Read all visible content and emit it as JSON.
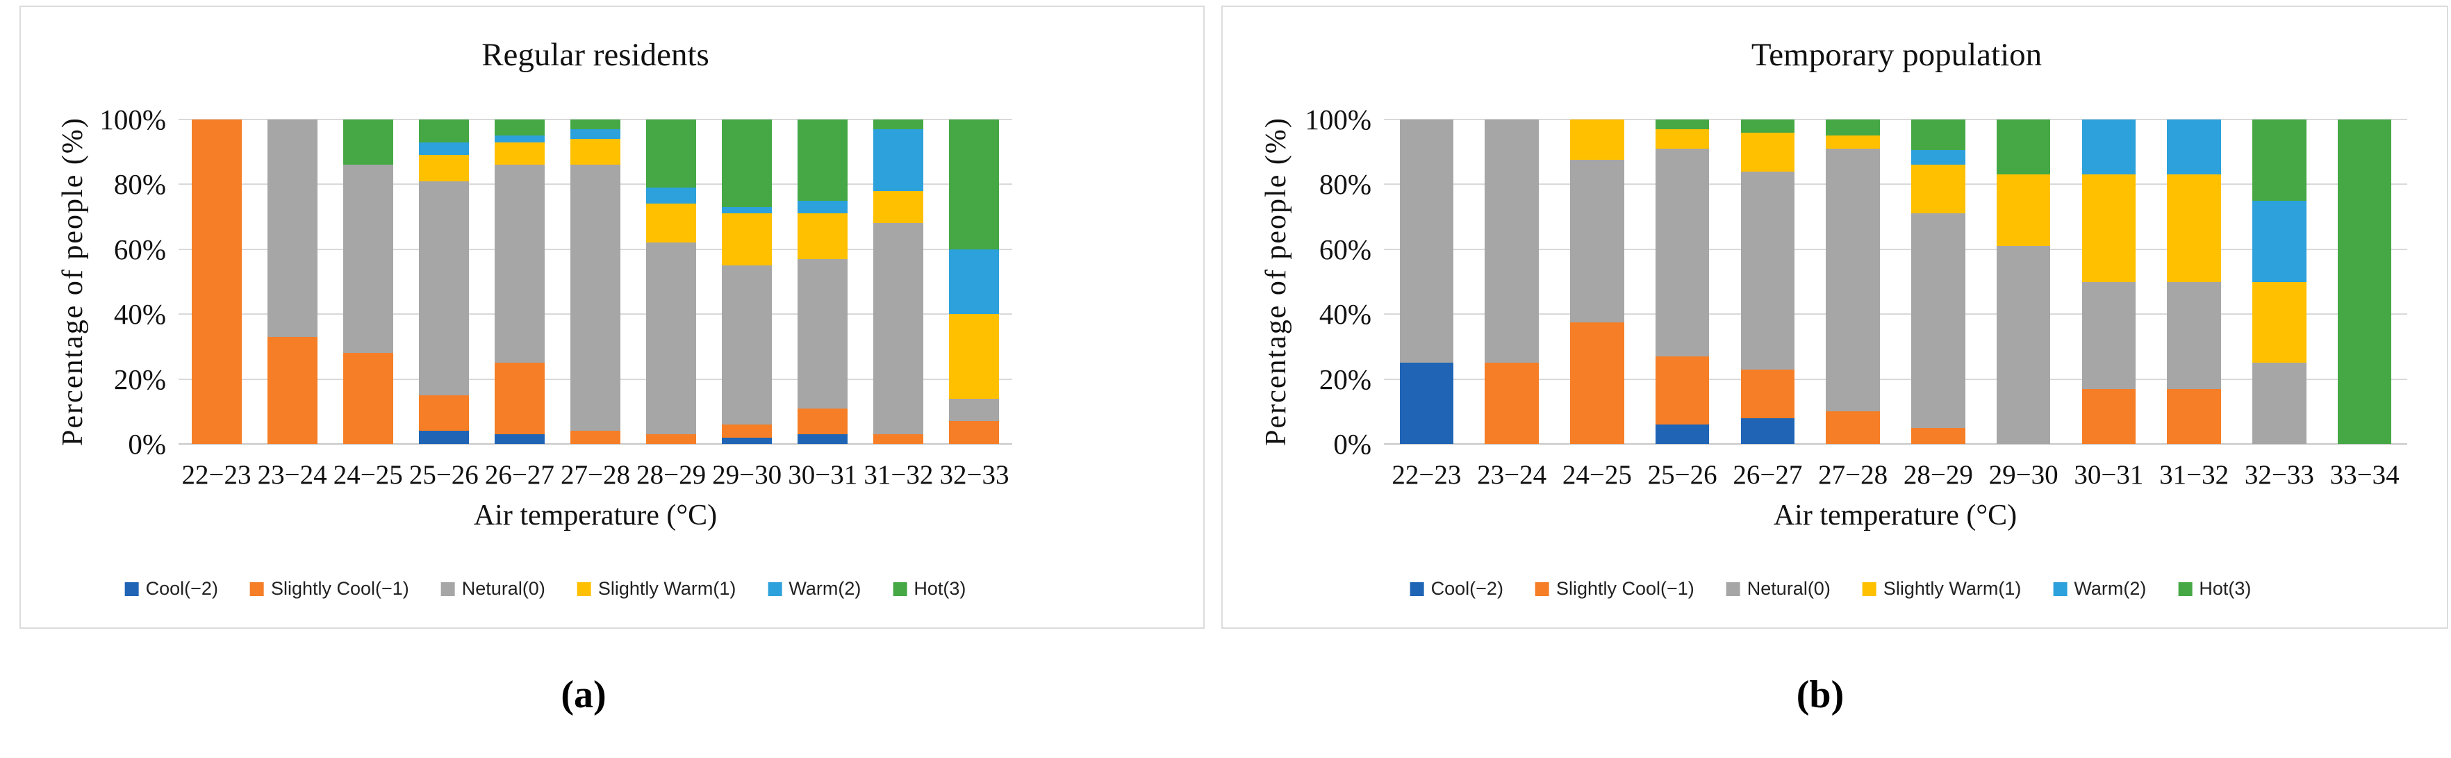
{
  "colors": {
    "cool": "#1F64B5",
    "slightly_cool": "#F57E27",
    "neutral": "#A6A6A6",
    "slightly_warm": "#FFC000",
    "warm": "#2CA1DB",
    "hot": "#45A845",
    "gridline": "#D9D9D9"
  },
  "captions": [
    "(a)",
    "(b)"
  ],
  "chart_data": [
    {
      "type": "bar",
      "stacked": true,
      "units": "percent",
      "title": "Regular residents",
      "xlabel": "Air temperature (°C)",
      "ylabel": "Percentage of people (%)",
      "ylim": [
        0,
        100
      ],
      "grid": true,
      "legend_position": "bottom",
      "yticks": [
        "0%",
        "20%",
        "40%",
        "60%",
        "80%",
        "100%"
      ],
      "categories": [
        "22−23",
        "23−24",
        "24−25",
        "25−26",
        "26−27",
        "27−28",
        "28−29",
        "29−30",
        "30−31",
        "31−32",
        "32−33"
      ],
      "series": [
        {
          "name": "Cool(−2)",
          "color_key": "cool",
          "values": [
            0,
            0,
            0,
            4,
            3,
            0,
            0,
            2,
            3,
            0,
            0
          ]
        },
        {
          "name": "Slightly Cool(−1)",
          "color_key": "slightly_cool",
          "values": [
            100,
            33,
            28,
            11,
            22,
            4,
            3,
            4,
            8,
            3,
            7
          ]
        },
        {
          "name": "Netural(0)",
          "color_key": "neutral",
          "values": [
            0,
            67,
            58,
            66,
            61,
            82,
            59,
            49,
            46,
            65,
            7
          ]
        },
        {
          "name": "Slightly Warm(1)",
          "color_key": "slightly_warm",
          "values": [
            0,
            0,
            0,
            8,
            7,
            8,
            12,
            16,
            14,
            10,
            26
          ]
        },
        {
          "name": "Warm(2)",
          "color_key": "warm",
          "values": [
            0,
            0,
            0,
            4,
            2,
            3,
            5,
            2,
            4,
            19,
            20
          ]
        },
        {
          "name": "Hot(3)",
          "color_key": "hot",
          "values": [
            0,
            0,
            14,
            7,
            5,
            3,
            21,
            27,
            25,
            3,
            40
          ]
        }
      ]
    },
    {
      "type": "bar",
      "stacked": true,
      "units": "percent",
      "title": "Temporary population",
      "xlabel": "Air temperature (°C)",
      "ylabel": "Percentage of people (%)",
      "ylim": [
        0,
        100
      ],
      "grid": true,
      "legend_position": "bottom",
      "yticks": [
        "0%",
        "20%",
        "40%",
        "60%",
        "80%",
        "100%"
      ],
      "categories": [
        "22−23",
        "23−24",
        "24−25",
        "25−26",
        "26−27",
        "27−28",
        "28−29",
        "29−30",
        "30−31",
        "31−32",
        "32−33",
        "33−34"
      ],
      "series": [
        {
          "name": "Cool(−2)",
          "color_key": "cool",
          "values": [
            25,
            0,
            0,
            6,
            8,
            0,
            0,
            0,
            0,
            0,
            0,
            0
          ]
        },
        {
          "name": "Slightly Cool(−1)",
          "color_key": "slightly_cool",
          "values": [
            0,
            25,
            37.5,
            21,
            15,
            10,
            5,
            0,
            17,
            17,
            0,
            0
          ]
        },
        {
          "name": "Netural(0)",
          "color_key": "neutral",
          "values": [
            75,
            75,
            50,
            64,
            61,
            81,
            66,
            61,
            33,
            33,
            25,
            0
          ]
        },
        {
          "name": "Slightly Warm(1)",
          "color_key": "slightly_warm",
          "values": [
            0,
            0,
            12.5,
            6,
            12,
            4,
            15,
            22,
            33,
            33,
            25,
            0
          ]
        },
        {
          "name": "Warm(2)",
          "color_key": "warm",
          "values": [
            0,
            0,
            0,
            0,
            0,
            0,
            4.5,
            0,
            17,
            17,
            25,
            0
          ]
        },
        {
          "name": "Hot(3)",
          "color_key": "hot",
          "values": [
            0,
            0,
            0,
            3,
            4,
            5,
            9.5,
            17,
            0,
            0,
            25,
            100
          ]
        }
      ]
    }
  ]
}
